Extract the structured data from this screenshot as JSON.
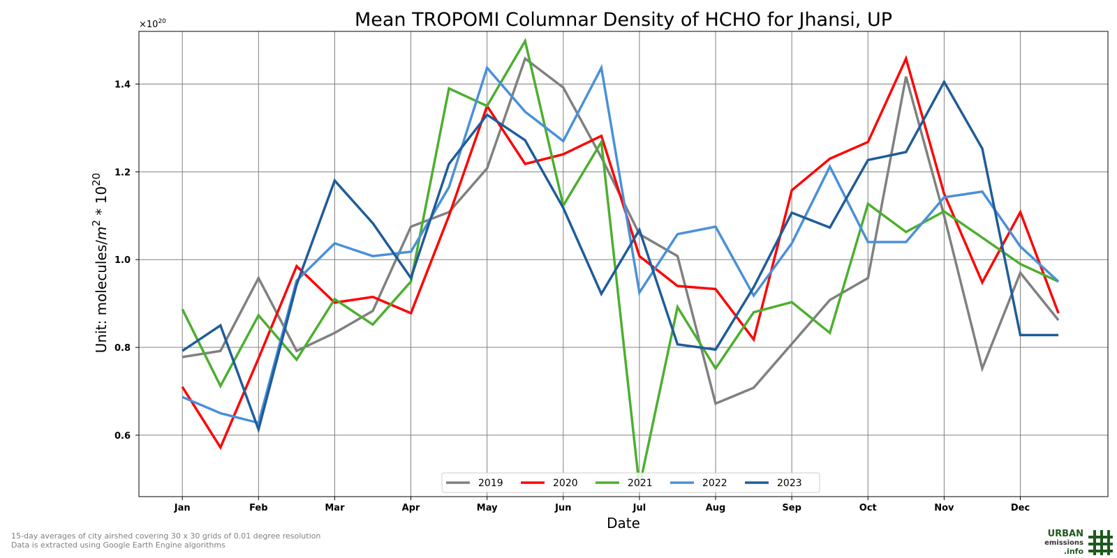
{
  "chart_data": {
    "type": "line",
    "title": "Mean TROPOMI Columnar Density of HCHO for Jhansi, UP",
    "xlabel": "Date",
    "ylabel": "Unit: molecules/m2 * 10^20",
    "ylabel_main": "Unit: molecules/",
    "ylabel_m": "m",
    "ylabel_m_sup": "2",
    "ylabel_mid": " * 10",
    "ylabel_ten_sup": "20",
    "y_scale_base": "×10",
    "y_scale_exp": "20",
    "xlim": [
      0.43,
      13.15
    ],
    "ylim": [
      0.46,
      1.52
    ],
    "x": [
      1,
      1.5,
      2,
      2.5,
      3,
      3.5,
      4,
      4.5,
      5,
      5.5,
      6,
      6.5,
      7,
      7.5,
      8,
      8.5,
      9,
      9.5,
      10,
      10.5,
      11,
      11.5,
      12,
      12.5
    ],
    "month_ticks": [
      {
        "x": 1,
        "label": "Jan"
      },
      {
        "x": 2,
        "label": "Feb"
      },
      {
        "x": 3,
        "label": "Mar"
      },
      {
        "x": 4,
        "label": "Apr"
      },
      {
        "x": 5,
        "label": "May"
      },
      {
        "x": 6,
        "label": "Jun"
      },
      {
        "x": 7,
        "label": "Jul"
      },
      {
        "x": 8,
        "label": "Aug"
      },
      {
        "x": 9,
        "label": "Sep"
      },
      {
        "x": 10,
        "label": "Oct"
      },
      {
        "x": 11,
        "label": "Nov"
      },
      {
        "x": 12,
        "label": "Dec"
      }
    ],
    "y_ticks": [
      {
        "value": 0.6,
        "label": "0.6"
      },
      {
        "value": 0.8,
        "label": "0.8"
      },
      {
        "value": 1.0,
        "label": "1.0"
      },
      {
        "value": 1.2,
        "label": "1.2"
      },
      {
        "value": 1.4,
        "label": "1.4"
      }
    ],
    "grid": true,
    "legend_position": "bottom-center",
    "series": [
      {
        "name": "2019",
        "color": "#808080",
        "values": [
          0.778,
          0.792,
          0.958,
          0.792,
          0.833,
          0.883,
          1.075,
          1.108,
          1.208,
          1.458,
          1.392,
          1.233,
          1.058,
          1.008,
          0.672,
          0.708,
          0.808,
          0.908,
          0.958,
          1.417,
          1.1,
          0.752,
          0.97,
          0.862
        ]
      },
      {
        "name": "2020",
        "color": "#ff0000",
        "values": [
          0.71,
          0.572,
          0.775,
          0.985,
          0.902,
          0.915,
          0.878,
          1.1,
          1.35,
          1.218,
          1.24,
          1.282,
          1.008,
          0.94,
          0.933,
          0.818,
          1.158,
          1.23,
          1.268,
          1.458,
          1.15,
          0.948,
          1.108,
          0.878
        ]
      },
      {
        "name": "2021",
        "color": "#4caf2f",
        "values": [
          0.887,
          0.712,
          0.873,
          0.772,
          0.91,
          0.852,
          0.95,
          1.39,
          1.35,
          1.498,
          1.123,
          1.268,
          0.482,
          0.892,
          0.752,
          0.88,
          0.903,
          0.833,
          1.127,
          1.063,
          1.11,
          1.05,
          0.99,
          0.95
        ]
      },
      {
        "name": "2022",
        "color": "#4a90d9",
        "values": [
          0.687,
          0.65,
          0.628,
          0.952,
          1.037,
          1.008,
          1.018,
          1.165,
          1.437,
          1.337,
          1.27,
          1.437,
          0.925,
          1.058,
          1.075,
          0.918,
          1.037,
          1.212,
          1.04,
          1.04,
          1.142,
          1.155,
          1.03,
          0.95
        ]
      },
      {
        "name": "2023",
        "color": "#1f5c99",
        "values": [
          0.792,
          0.85,
          0.613,
          0.943,
          1.18,
          1.083,
          0.958,
          1.218,
          1.33,
          1.272,
          1.118,
          0.922,
          1.068,
          0.807,
          0.795,
          0.937,
          1.107,
          1.073,
          1.227,
          1.245,
          1.405,
          1.253,
          0.828,
          0.828
        ]
      }
    ]
  },
  "footnote": {
    "line1": "15-day averages of city airshed covering 30 x 30 grids of 0.01 degree resolution",
    "line2": "Data is extracted using Google Earth Engine algorithms"
  },
  "logo": {
    "line1": "URBAN",
    "line2": "emissions",
    "line3": ".info",
    "color": "#1e5a1e"
  }
}
